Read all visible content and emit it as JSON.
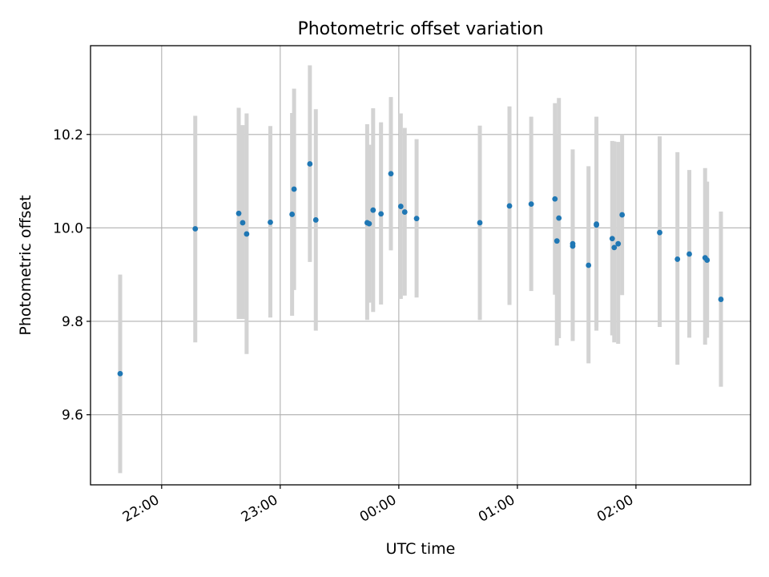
{
  "chart_data": {
    "type": "scatter",
    "title": "Photometric offset variation",
    "xlabel": "UTC time",
    "ylabel": "Photometric offset",
    "x_axis_kind": "time",
    "xlim": [
      "21:24",
      "02:58"
    ],
    "ylim": [
      9.45,
      10.39
    ],
    "grid": true,
    "x_ticks": [
      "22:00",
      "23:00",
      "00:00",
      "01:00",
      "02:00"
    ],
    "y_ticks": [
      "9.6",
      "9.8",
      "10.0",
      "10.2"
    ],
    "colors": {
      "marker": "#1f77b4",
      "errorbar": "#d3d3d3",
      "grid": "#b0b0b0"
    },
    "series": [
      {
        "points": [
          {
            "x": "21:39",
            "y": 9.688,
            "lo": 9.475,
            "hi": 9.9
          },
          {
            "x": "22:17",
            "y": 9.998,
            "lo": 9.755,
            "hi": 10.24
          },
          {
            "x": "22:39",
            "y": 10.031,
            "lo": 9.805,
            "hi": 10.257
          },
          {
            "x": "22:41",
            "y": 10.011,
            "lo": 9.805,
            "hi": 10.22
          },
          {
            "x": "22:43",
            "y": 9.987,
            "lo": 9.73,
            "hi": 10.245
          },
          {
            "x": "22:55",
            "y": 10.012,
            "lo": 9.808,
            "hi": 10.218
          },
          {
            "x": "23:06",
            "y": 10.029,
            "lo": 9.812,
            "hi": 10.246
          },
          {
            "x": "23:07",
            "y": 10.083,
            "lo": 9.867,
            "hi": 10.298
          },
          {
            "x": "23:15",
            "y": 10.137,
            "lo": 9.927,
            "hi": 10.348
          },
          {
            "x": "23:18",
            "y": 10.017,
            "lo": 9.78,
            "hi": 10.254
          },
          {
            "x": "23:44",
            "y": 10.011,
            "lo": 9.803,
            "hi": 10.222
          },
          {
            "x": "23:45",
            "y": 10.009,
            "lo": 9.84,
            "hi": 10.178
          },
          {
            "x": "23:47",
            "y": 10.038,
            "lo": 9.82,
            "hi": 10.256
          },
          {
            "x": "23:51",
            "y": 10.03,
            "lo": 9.836,
            "hi": 10.226
          },
          {
            "x": "23:56",
            "y": 10.116,
            "lo": 9.952,
            "hi": 10.28
          },
          {
            "x": "00:01",
            "y": 10.046,
            "lo": 9.848,
            "hi": 10.245
          },
          {
            "x": "00:03",
            "y": 10.034,
            "lo": 9.855,
            "hi": 10.214
          },
          {
            "x": "00:09",
            "y": 10.02,
            "lo": 9.851,
            "hi": 10.19
          },
          {
            "x": "00:41",
            "y": 10.011,
            "lo": 9.803,
            "hi": 10.219
          },
          {
            "x": "00:56",
            "y": 10.047,
            "lo": 9.835,
            "hi": 10.26
          },
          {
            "x": "01:07",
            "y": 10.051,
            "lo": 9.865,
            "hi": 10.238
          },
          {
            "x": "01:19",
            "y": 10.062,
            "lo": 9.857,
            "hi": 10.267
          },
          {
            "x": "01:20",
            "y": 9.972,
            "lo": 9.748,
            "hi": 10.199
          },
          {
            "x": "01:21",
            "y": 10.021,
            "lo": 9.764,
            "hi": 10.278
          },
          {
            "x": "01:28",
            "y": 9.966,
            "lo": 9.758,
            "hi": 10.168
          },
          {
            "x": "01:28",
            "y": 9.961,
            "lo": 9.77,
            "hi": 10.157
          },
          {
            "x": "01:36",
            "y": 9.92,
            "lo": 9.71,
            "hi": 10.132
          },
          {
            "x": "01:40",
            "y": 10.008,
            "lo": 9.78,
            "hi": 10.208
          },
          {
            "x": "01:40",
            "y": 10.006,
            "lo": 9.788,
            "hi": 10.238
          },
          {
            "x": "01:48",
            "y": 9.977,
            "lo": 9.77,
            "hi": 10.186
          },
          {
            "x": "01:49",
            "y": 9.958,
            "lo": 9.755,
            "hi": 10.185
          },
          {
            "x": "01:51",
            "y": 9.966,
            "lo": 9.752,
            "hi": 10.184
          },
          {
            "x": "01:53",
            "y": 10.028,
            "lo": 9.856,
            "hi": 10.2
          },
          {
            "x": "02:12",
            "y": 9.99,
            "lo": 9.788,
            "hi": 10.196
          },
          {
            "x": "02:21",
            "y": 9.933,
            "lo": 9.707,
            "hi": 10.162
          },
          {
            "x": "02:27",
            "y": 9.944,
            "lo": 9.765,
            "hi": 10.124
          },
          {
            "x": "02:35",
            "y": 9.936,
            "lo": 9.75,
            "hi": 10.128
          },
          {
            "x": "02:36",
            "y": 9.931,
            "lo": 9.765,
            "hi": 10.099
          },
          {
            "x": "02:43",
            "y": 9.847,
            "lo": 9.66,
            "hi": 10.035
          }
        ]
      }
    ]
  }
}
